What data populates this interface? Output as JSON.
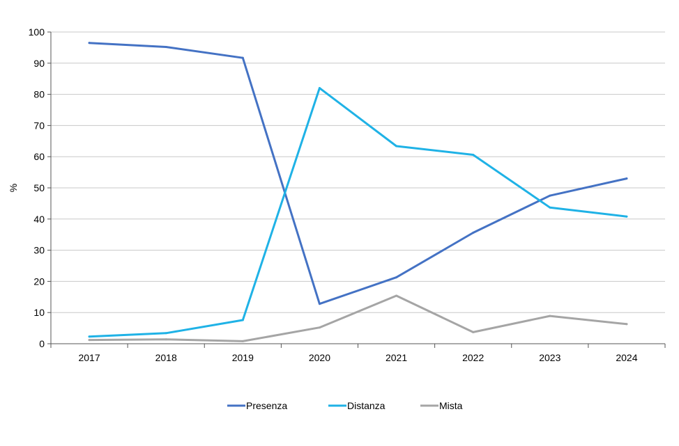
{
  "chart_data": {
    "type": "line",
    "title": "",
    "xlabel": "",
    "ylabel": "%",
    "ylim": [
      0,
      100
    ],
    "yticks": [
      "0",
      "10",
      "20",
      "30",
      "40",
      "50",
      "60",
      "70",
      "80",
      "90",
      "100"
    ],
    "categories": [
      "2017",
      "2018",
      "2019",
      "2020",
      "2021",
      "2022",
      "2023",
      "2024"
    ],
    "grid": true,
    "legend_position": "bottom",
    "series": [
      {
        "name": "Presenza",
        "color": "#4472c4",
        "values": [
          96.5,
          95.2,
          91.7,
          12.8,
          21.3,
          35.6,
          47.5,
          53.0
        ]
      },
      {
        "name": "Distanza",
        "color": "#1fb2e6",
        "values": [
          2.3,
          3.4,
          7.6,
          82.0,
          63.4,
          60.6,
          43.7,
          40.8
        ]
      },
      {
        "name": "Mista",
        "color": "#a5a5a5",
        "values": [
          1.2,
          1.4,
          0.8,
          5.2,
          15.4,
          3.7,
          8.9,
          6.3
        ]
      }
    ]
  }
}
